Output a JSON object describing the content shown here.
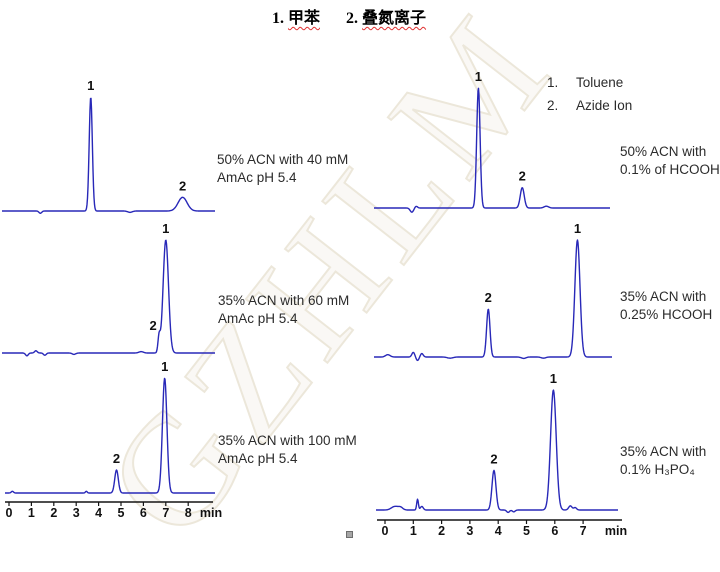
{
  "title": {
    "parts": [
      {
        "num": "1.",
        "text": "甲苯"
      },
      {
        "num": "2.",
        "text": "叠氮离子"
      }
    ]
  },
  "legend": {
    "items": [
      {
        "num": "1.",
        "label": "Toluene"
      },
      {
        "num": "2.",
        "label": "Azide Ion"
      }
    ]
  },
  "watermark_text": "GZHLM",
  "colors": {
    "trace": "#2828b8",
    "axis": "#141414",
    "peak_label": "#111111",
    "underline": "#e03030",
    "watermark_stroke": "#ece7da"
  },
  "chart_data": [
    {
      "id": "left-top",
      "type": "line",
      "title": "50% ACN with 40 mM AmAc pH 5.4",
      "label_lines": [
        "50% ACN with 40 mM",
        "AmAc pH 5.4"
      ],
      "xlabel": "min",
      "x_ticks": [
        0,
        1,
        2,
        3,
        4,
        5,
        6,
        7,
        8
      ],
      "axis_shown": false,
      "peaks": [
        {
          "id": "1",
          "compound": "Toluene",
          "rt_min": 3.65,
          "rel_height": 1.0,
          "sigma_min": 0.07
        },
        {
          "id": "2",
          "compound": "Azide Ion",
          "rt_min": 7.75,
          "rel_height": 0.12,
          "sigma_min": 0.2
        }
      ],
      "noise": [
        {
          "t": 1.4,
          "h": -0.02,
          "w": 0.06
        },
        {
          "t": 5.4,
          "h": -0.012,
          "w": 0.1
        }
      ]
    },
    {
      "id": "left-middle",
      "type": "line",
      "title": "35% ACN with 60 mM AmAc pH 5.4",
      "label_lines": [
        "35% ACN with 60 mM",
        "AmAc pH 5.4"
      ],
      "xlabel": "min",
      "x_ticks": [
        0,
        1,
        2,
        3,
        4,
        5,
        6,
        7,
        8
      ],
      "axis_shown": false,
      "peaks": [
        {
          "id": "2",
          "compound": "Azide Ion",
          "rt_min": 6.7,
          "rel_height": 0.14,
          "sigma_min": 0.05,
          "label_dx": -6
        },
        {
          "id": "1",
          "compound": "Toluene",
          "rt_min": 7.0,
          "rel_height": 1.0,
          "sigma_min": 0.12
        }
      ],
      "noise": [
        {
          "t": 0.8,
          "h": -0.025,
          "w": 0.06
        },
        {
          "t": 1.2,
          "h": 0.02,
          "w": 0.06
        },
        {
          "t": 1.6,
          "h": -0.02,
          "w": 0.06
        },
        {
          "t": 2.9,
          "h": -0.012,
          "w": 0.08
        },
        {
          "t": 5.9,
          "h": 0.012,
          "w": 0.1
        }
      ]
    },
    {
      "id": "left-bottom",
      "type": "line",
      "title": "35% ACN with 100 mM AmAc pH 5.4",
      "label_lines": [
        "35% ACN with 100 mM",
        "AmAc pH 5.4"
      ],
      "xlabel": "min",
      "x_ticks": [
        0,
        1,
        2,
        3,
        4,
        5,
        6,
        7,
        8
      ],
      "axis_shown": true,
      "peaks": [
        {
          "id": "2",
          "compound": "Azide Ion",
          "rt_min": 4.8,
          "rel_height": 0.2,
          "sigma_min": 0.08
        },
        {
          "id": "1",
          "compound": "Toluene",
          "rt_min": 6.95,
          "rel_height": 1.0,
          "sigma_min": 0.1
        }
      ],
      "noise": [
        {
          "t": 0.15,
          "h": 0.015,
          "w": 0.05
        },
        {
          "t": 3.45,
          "h": 0.015,
          "w": 0.04
        }
      ]
    },
    {
      "id": "right-top",
      "type": "line",
      "title": "50% ACN with 0.1% of HCOOH",
      "label_lines": [
        "50% ACN with",
        "0.1% of HCOOH"
      ],
      "xlabel": "min",
      "x_ticks": [
        0,
        1,
        2,
        3,
        4,
        5,
        6,
        7
      ],
      "axis_shown": false,
      "peaks": [
        {
          "id": "1",
          "compound": "Toluene",
          "rt_min": 3.3,
          "rel_height": 1.0,
          "sigma_min": 0.06
        },
        {
          "id": "2",
          "compound": "Azide Ion",
          "rt_min": 4.85,
          "rel_height": 0.17,
          "sigma_min": 0.07
        }
      ],
      "noise": [
        {
          "t": 0.95,
          "h": -0.035,
          "w": 0.06
        },
        {
          "t": 1.1,
          "h": 0.015,
          "w": 0.05
        },
        {
          "t": 5.7,
          "h": 0.015,
          "w": 0.08
        }
      ]
    },
    {
      "id": "right-middle",
      "type": "line",
      "title": "35% ACN with 0.25% HCOOH",
      "label_lines": [
        "35% ACN with",
        "0.25% HCOOH"
      ],
      "xlabel": "min",
      "x_ticks": [
        0,
        1,
        2,
        3,
        4,
        5,
        6,
        7
      ],
      "axis_shown": false,
      "peaks": [
        {
          "id": "2",
          "compound": "Azide Ion",
          "rt_min": 3.65,
          "rel_height": 0.41,
          "sigma_min": 0.06
        },
        {
          "id": "1",
          "compound": "Toluene",
          "rt_min": 6.8,
          "rel_height": 1.0,
          "sigma_min": 0.09
        }
      ],
      "noise": [
        {
          "t": 0.1,
          "h": 0.02,
          "w": 0.08
        },
        {
          "t": 1.0,
          "h": 0.04,
          "w": 0.05
        },
        {
          "t": 1.15,
          "h": -0.03,
          "w": 0.05
        },
        {
          "t": 1.3,
          "h": 0.03,
          "w": 0.05
        },
        {
          "t": 2.3,
          "h": -0.01,
          "w": 0.1
        },
        {
          "t": 4.9,
          "h": -0.012,
          "w": 0.08
        },
        {
          "t": 5.6,
          "h": -0.01,
          "w": 0.08
        }
      ]
    },
    {
      "id": "right-bottom",
      "type": "line",
      "title": "35% ACN with 0.1% H₃PO₄",
      "label_lines": [
        "35% ACN with",
        "0.1% H₃PO₄"
      ],
      "xlabel": "min",
      "x_ticks": [
        0,
        1,
        2,
        3,
        4,
        5,
        6,
        7
      ],
      "axis_shown": true,
      "peaks": [
        {
          "id": "2",
          "compound": "Azide Ion",
          "rt_min": 3.85,
          "rel_height": 0.33,
          "sigma_min": 0.07
        },
        {
          "id": "1",
          "compound": "Toluene",
          "rt_min": 5.95,
          "rel_height": 1.0,
          "sigma_min": 0.1
        }
      ],
      "noise": [
        {
          "t": 0.35,
          "h": 0.03,
          "w": 0.12
        },
        {
          "t": 0.55,
          "h": 0.02,
          "w": 0.08
        },
        {
          "t": 1.15,
          "h": 0.09,
          "w": 0.03
        },
        {
          "t": 1.3,
          "h": 0.03,
          "w": 0.05
        },
        {
          "t": 4.35,
          "h": -0.02,
          "w": 0.05
        },
        {
          "t": 4.55,
          "h": -0.015,
          "w": 0.05
        },
        {
          "t": 6.55,
          "h": 0.035,
          "w": 0.06
        },
        {
          "t": 6.72,
          "h": 0.02,
          "w": 0.05
        }
      ]
    }
  ]
}
